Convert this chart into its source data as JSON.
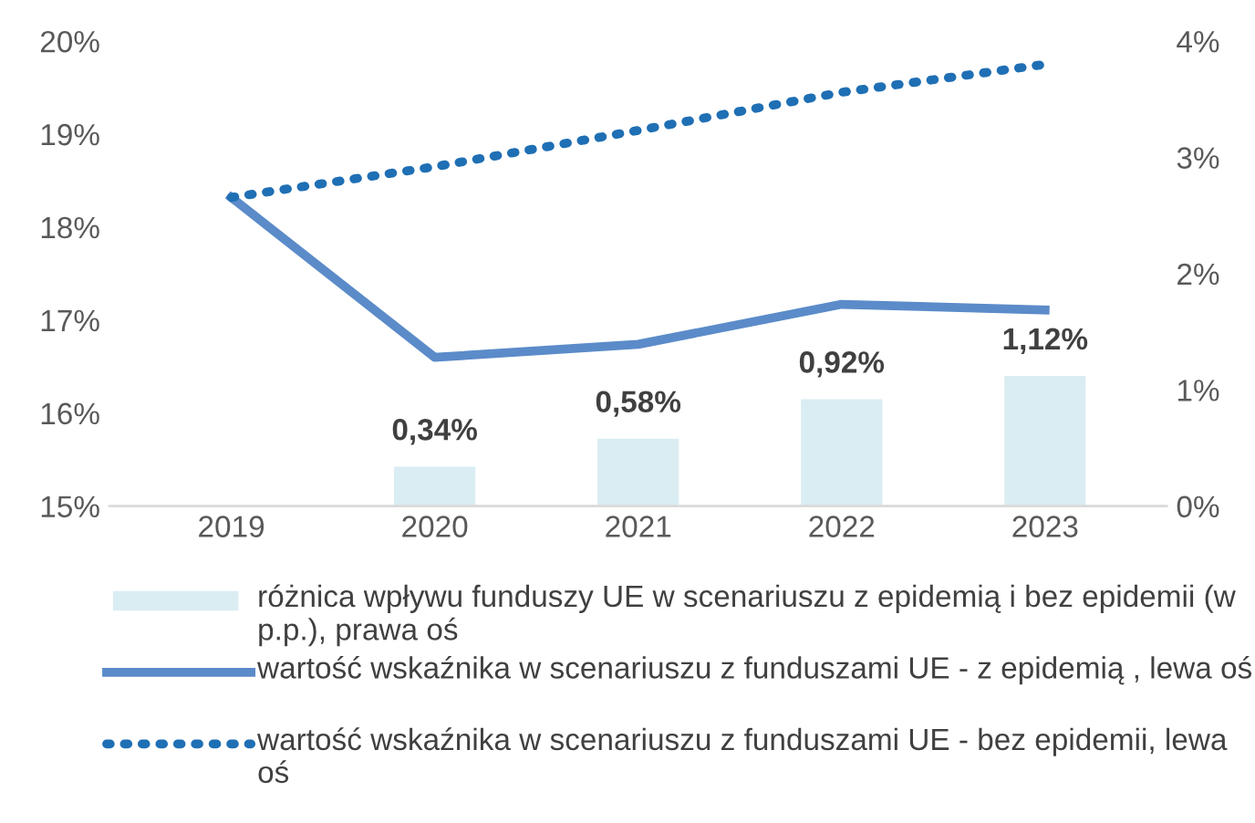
{
  "chart_data": {
    "type": "bar",
    "categories": [
      "2019",
      "2020",
      "2021",
      "2022",
      "2023"
    ],
    "ylim": [
      15,
      20
    ],
    "yticks": [
      {
        "value": 15,
        "label": "15%"
      },
      {
        "value": 16,
        "label": "16%"
      },
      {
        "value": 17,
        "label": "17%"
      },
      {
        "value": 18,
        "label": "18%"
      },
      {
        "value": 19,
        "label": "19%"
      },
      {
        "value": 20,
        "label": "20%"
      }
    ],
    "y2lim": [
      0,
      4
    ],
    "y2ticks": [
      {
        "value": 0,
        "label": "0%"
      },
      {
        "value": 1,
        "label": "1%"
      },
      {
        "value": 2,
        "label": "2%"
      },
      {
        "value": 3,
        "label": "3%"
      },
      {
        "value": 4,
        "label": "4%"
      }
    ],
    "series": [
      {
        "name": "różnica wpływu funduszy UE w scenariuszu z epidemią i bez epidemii (w p.p.), prawa oś",
        "axis": "y2",
        "color": "#daedf3",
        "values": [
          null,
          0.34,
          0.58,
          0.92,
          1.12
        ],
        "value_labels": [
          null,
          "0,34%",
          "0,58%",
          "0,92%",
          "1,12%"
        ]
      },
      {
        "name": "wartość wskaźnika w scenariuszu z funduszami UE - z epidemią , lewa oś",
        "type": "line",
        "color": "#5b8bc9",
        "line_style": "solid",
        "values": [
          18.32,
          16.6,
          16.74,
          17.17,
          17.11
        ]
      },
      {
        "name": "wartość wskaźnika w scenariuszu z funduszami UE - bez epidemii, lewa oś",
        "type": "line",
        "color": "#1f6fb4",
        "line_style": "dotted",
        "values": [
          18.32,
          18.65,
          19.04,
          19.45,
          19.75
        ]
      }
    ],
    "legend": "bottom",
    "grid": false
  }
}
